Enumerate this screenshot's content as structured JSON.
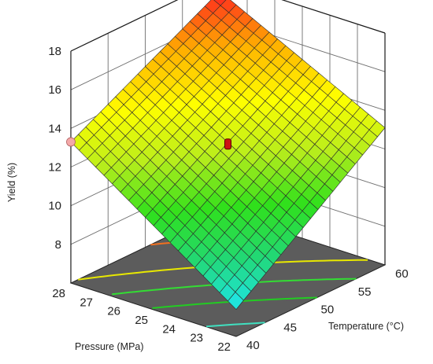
{
  "chart_data": {
    "type": "surface3d",
    "title": "",
    "z_axis": {
      "label": "Yield (%)",
      "ticks": [
        "8",
        "10",
        "12",
        "14",
        "16",
        "18"
      ],
      "range": [
        6,
        18
      ]
    },
    "y_axis": {
      "label": "Pressure (MPa)",
      "ticks": [
        "28",
        "27",
        "26",
        "25",
        "24",
        "23",
        "22"
      ],
      "range": [
        22,
        28
      ]
    },
    "x_axis": {
      "label": "Temperature (°C)",
      "ticks": [
        "40",
        "45",
        "50",
        "55",
        "60"
      ],
      "range": [
        40,
        60
      ]
    },
    "surface_corners": [
      {
        "temperature": 40,
        "pressure": 22,
        "yield": 7.4
      },
      {
        "temperature": 40,
        "pressure": 28,
        "yield": 13.3
      },
      {
        "temperature": 60,
        "pressure": 22,
        "yield": 13.1
      },
      {
        "temperature": 60,
        "pressure": 28,
        "yield": 17.4
      }
    ],
    "grid_divisions": 20,
    "color_scale": [
      "#1ee6f0",
      "#22d875",
      "#30e01c",
      "#b8ed1c",
      "#ffff00",
      "#ffb000",
      "#ff2020"
    ],
    "design_points": [
      {
        "temperature": 40,
        "pressure": 28,
        "yield": 13.3,
        "color": "#f4a8a8"
      },
      {
        "temperature": 50,
        "pressure": 25,
        "yield": 12.7,
        "color": "#cc1414"
      }
    ],
    "contours": [
      {
        "level": 8.5,
        "color": "#40e0c0"
      },
      {
        "level": 10.5,
        "color": "#22cc22"
      },
      {
        "level": 12,
        "color": "#33dd33"
      },
      {
        "level": 13.5,
        "color": "#e8e800"
      },
      {
        "level": 15.5,
        "color": "#f07020"
      }
    ]
  }
}
